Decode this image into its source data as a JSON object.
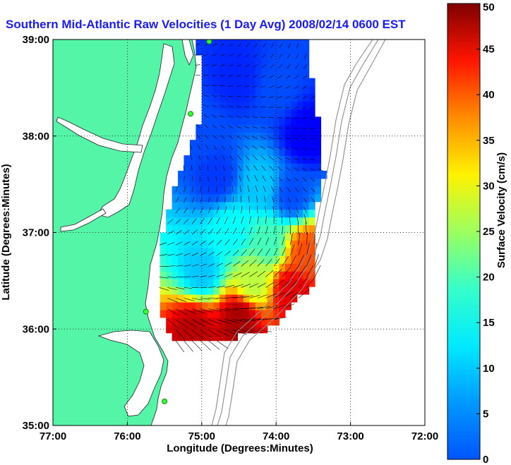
{
  "chart_data": {
    "type": "heatmap",
    "title": "Southern Mid-Atlantic Raw Velocities (1 Day Avg) 2008/02/14 0600 EST",
    "xlabel": "Longitude (Degrees:Minutes)",
    "ylabel": "Latitude (Degrees:Minutes)",
    "x_ticks": [
      "77:00",
      "76:00",
      "75:00",
      "74:00",
      "73:00",
      "72:00"
    ],
    "y_ticks": [
      "39:00",
      "38:00",
      "37:00",
      "36:00",
      "35:00"
    ],
    "xlim": [
      -77,
      -72
    ],
    "ylim": [
      35,
      39
    ],
    "grid": true,
    "colorbar": {
      "label": "Surface Velocity (cm/s)",
      "min": 0,
      "max": 50,
      "ticks": [
        "0",
        "5",
        "10",
        "15",
        "20",
        "25",
        "30",
        "35",
        "40",
        "45",
        "50"
      ]
    },
    "field_samples": [
      {
        "lon": -74.5,
        "lat": 38.6,
        "speed": 8
      },
      {
        "lon": -74.0,
        "lat": 38.5,
        "speed": 10
      },
      {
        "lon": -73.6,
        "lat": 38.0,
        "speed": 6
      },
      {
        "lon": -75.0,
        "lat": 38.0,
        "speed": 10
      },
      {
        "lon": -74.8,
        "lat": 37.6,
        "speed": 9
      },
      {
        "lon": -74.2,
        "lat": 37.5,
        "speed": 16
      },
      {
        "lon": -73.8,
        "lat": 37.4,
        "speed": 10
      },
      {
        "lon": -74.6,
        "lat": 37.0,
        "speed": 19
      },
      {
        "lon": -74.1,
        "lat": 36.9,
        "speed": 22
      },
      {
        "lon": -73.6,
        "lat": 36.8,
        "speed": 40
      },
      {
        "lon": -75.0,
        "lat": 36.6,
        "speed": 16
      },
      {
        "lon": -74.3,
        "lat": 36.5,
        "speed": 28
      },
      {
        "lon": -73.8,
        "lat": 36.4,
        "speed": 45
      },
      {
        "lon": -75.1,
        "lat": 36.0,
        "speed": 47
      },
      {
        "lon": -74.5,
        "lat": 36.1,
        "speed": 48
      }
    ],
    "stations": [
      {
        "lon": -74.9,
        "lat": 38.98
      },
      {
        "lon": -75.15,
        "lat": 38.23
      },
      {
        "lon": -75.75,
        "lat": 36.18
      },
      {
        "lon": -75.5,
        "lat": 35.25
      }
    ]
  }
}
